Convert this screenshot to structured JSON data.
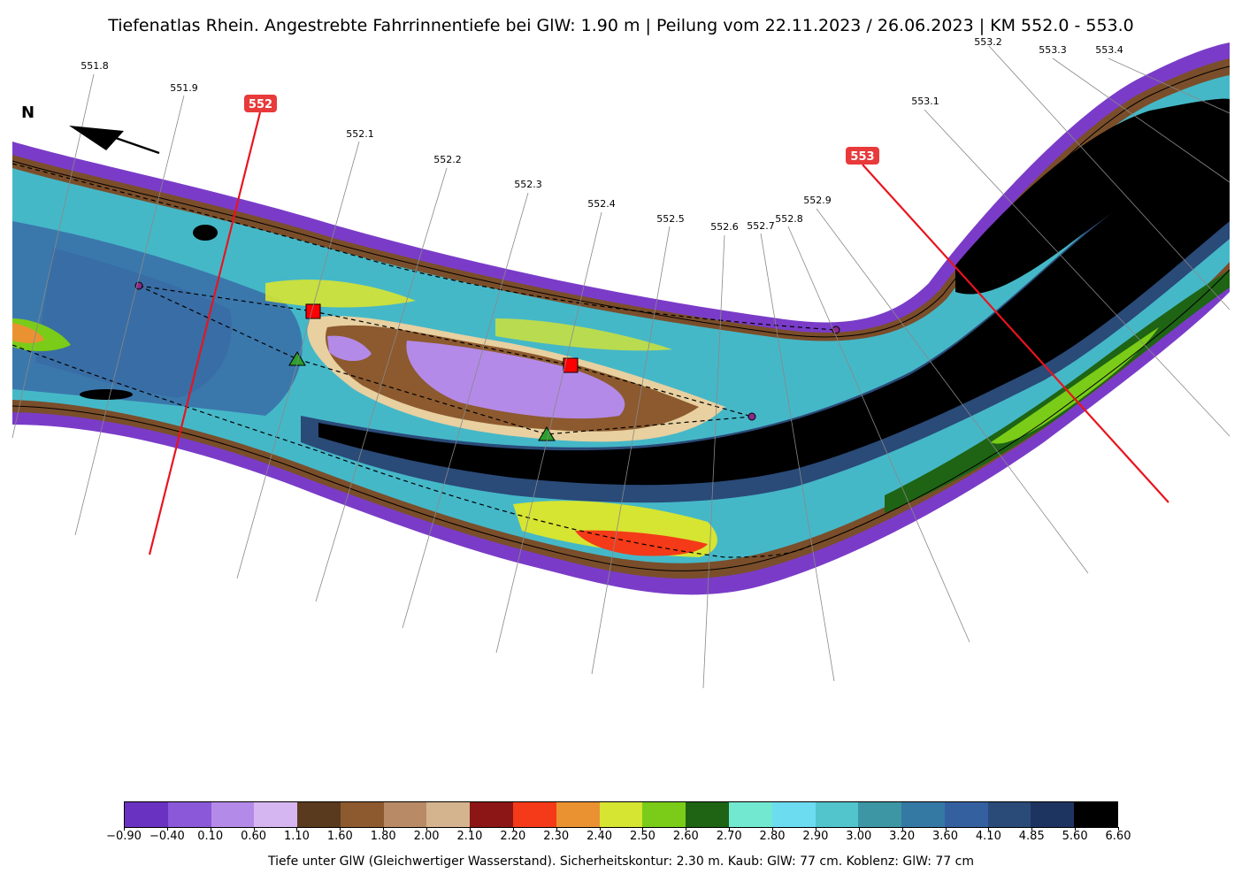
{
  "title": "Tiefenatlas Rhein. Angestrebte Fahrrinnentiefe bei GlW: 1.90 m | Peilung vom 22.11.2023 / 26.06.2023 | KM 552.0 - 553.0",
  "north_label": "N",
  "km_badges": [
    "552",
    "553"
  ],
  "km_labels": [
    "551.8",
    "551.9",
    "552.1",
    "552.2",
    "552.3",
    "552.4",
    "552.5",
    "552.6",
    "552.7",
    "552.8",
    "552.9",
    "553.1",
    "553.2",
    "553.3",
    "553.4"
  ],
  "colorbar": {
    "label": "Tiefe unter GlW (Gleichwertiger Wasserstand). Sicherheitskontur: 2.30 m. Kaub: GlW: 77 cm. Koblenz: GlW: 77 cm",
    "ticks": [
      "−0.90",
      "−0.40",
      "0.10",
      "0.60",
      "1.10",
      "1.60",
      "1.80",
      "2.00",
      "2.10",
      "2.20",
      "2.30",
      "2.40",
      "2.50",
      "2.60",
      "2.70",
      "2.80",
      "2.90",
      "3.00",
      "3.20",
      "3.60",
      "4.10",
      "4.85",
      "5.60",
      "6.60"
    ],
    "colors": [
      "#6a32c0",
      "#8a58d8",
      "#b48ae8",
      "#d6b6f0",
      "#5a3a1e",
      "#8c5a2e",
      "#b88a66",
      "#d4b48e",
      "#8c1616",
      "#f43a18",
      "#ea9232",
      "#d6e432",
      "#7acc18",
      "#1e6414",
      "#72e8d0",
      "#6cdcf0",
      "#52c4cc",
      "#3c96a4",
      "#3478a4",
      "#3460a0",
      "#2a4a78",
      "#1e3460",
      "#000000"
    ]
  }
}
